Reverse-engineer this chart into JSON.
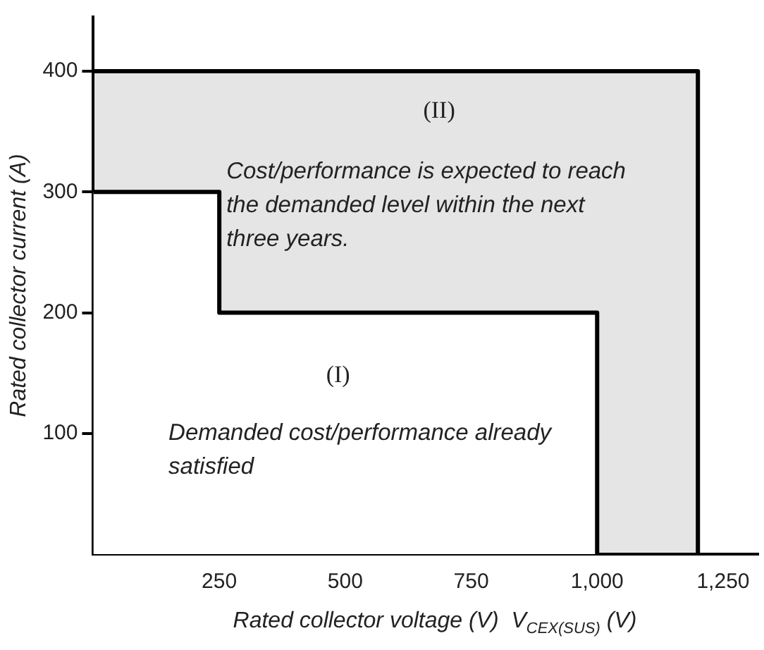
{
  "chart_data": {
    "type": "line",
    "xlabel": "Rated collector voltage (V)  V$_{CEX(SUS)}$ (V)",
    "ylabel": "Rated collector current (A)",
    "series": [
      {
        "type": "area",
        "color": "#000000",
        "x": [
          0,
          1200,
          1200
        ],
        "values": [
          400,
          400,
          0
        ]
      },
      {
        "type": "line",
        "color": "#000000",
        "x": [
          0,
          250,
          250,
          1000,
          1000
        ],
        "values": [
          300,
          300,
          200,
          200,
          0
        ]
      }
    ],
    "annotations": [
      "(II)",
      "Cost/performance is expected to reach\nthe demanded level within the next\nthree years.",
      "(I)",
      "Demanded cost/performance already\nsatisfied"
    ],
    "xlim": [
      0,
      1320
    ],
    "xticks": [
      250,
      500,
      750,
      {
        "value": 1000,
        "label": "1,000"
      },
      {
        "value": 1250,
        "label": "1,250"
      }
    ],
    "ylim": [
      0,
      445
    ],
    "yticks": [
      100,
      200,
      300,
      400
    ],
    "grid": false,
    "legend": false,
    "marker": "none",
    "line_style": "solid"
  }
}
